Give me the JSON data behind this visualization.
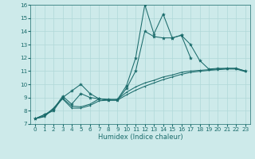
{
  "xlabel": "Humidex (Indice chaleur)",
  "bg_color": "#cdeaea",
  "line_color": "#1a6b6b",
  "grid_color": "#b0d8d8",
  "x": [
    0,
    1,
    2,
    3,
    4,
    5,
    6,
    7,
    8,
    9,
    10,
    11,
    12,
    13,
    14,
    15,
    16,
    17,
    18,
    19,
    20,
    21,
    22,
    23
  ],
  "series1": [
    7.4,
    7.7,
    8.0,
    9.0,
    9.5,
    10.0,
    9.3,
    8.9,
    8.85,
    8.85,
    9.9,
    12.0,
    16.0,
    13.8,
    15.3,
    13.5,
    13.7,
    13.0,
    11.8,
    11.15,
    11.2,
    11.2,
    11.2,
    11.0
  ],
  "series2": [
    7.4,
    7.7,
    8.1,
    9.1,
    8.5,
    9.3,
    9.0,
    8.9,
    8.8,
    8.8,
    9.7,
    11.0,
    14.0,
    13.6,
    13.5,
    13.5,
    13.7,
    12.0,
    null,
    null,
    null,
    null,
    null,
    null
  ],
  "series3": [
    7.4,
    7.6,
    8.2,
    8.95,
    8.35,
    8.3,
    8.5,
    8.9,
    8.85,
    8.85,
    9.4,
    9.8,
    10.1,
    10.3,
    10.55,
    10.7,
    10.9,
    11.0,
    11.05,
    11.1,
    11.15,
    11.2,
    11.2,
    11.0
  ],
  "series4": [
    7.4,
    7.55,
    8.15,
    8.9,
    8.2,
    8.2,
    8.4,
    8.75,
    8.8,
    8.8,
    9.2,
    9.55,
    9.85,
    10.1,
    10.35,
    10.55,
    10.75,
    10.9,
    10.98,
    11.05,
    11.1,
    11.15,
    11.15,
    10.95
  ],
  "ylim": [
    7,
    16
  ],
  "xlim": [
    -0.5,
    23.5
  ],
  "yticks": [
    7,
    8,
    9,
    10,
    11,
    12,
    13,
    14,
    15,
    16
  ],
  "xticks": [
    0,
    1,
    2,
    3,
    4,
    5,
    6,
    7,
    8,
    9,
    10,
    11,
    12,
    13,
    14,
    15,
    16,
    17,
    18,
    19,
    20,
    21,
    22,
    23
  ],
  "xlabel_fontsize": 6.0,
  "tick_fontsize": 5.2,
  "linewidth": 0.75,
  "marker_size_star": 3.0,
  "marker_size_small": 2.0
}
